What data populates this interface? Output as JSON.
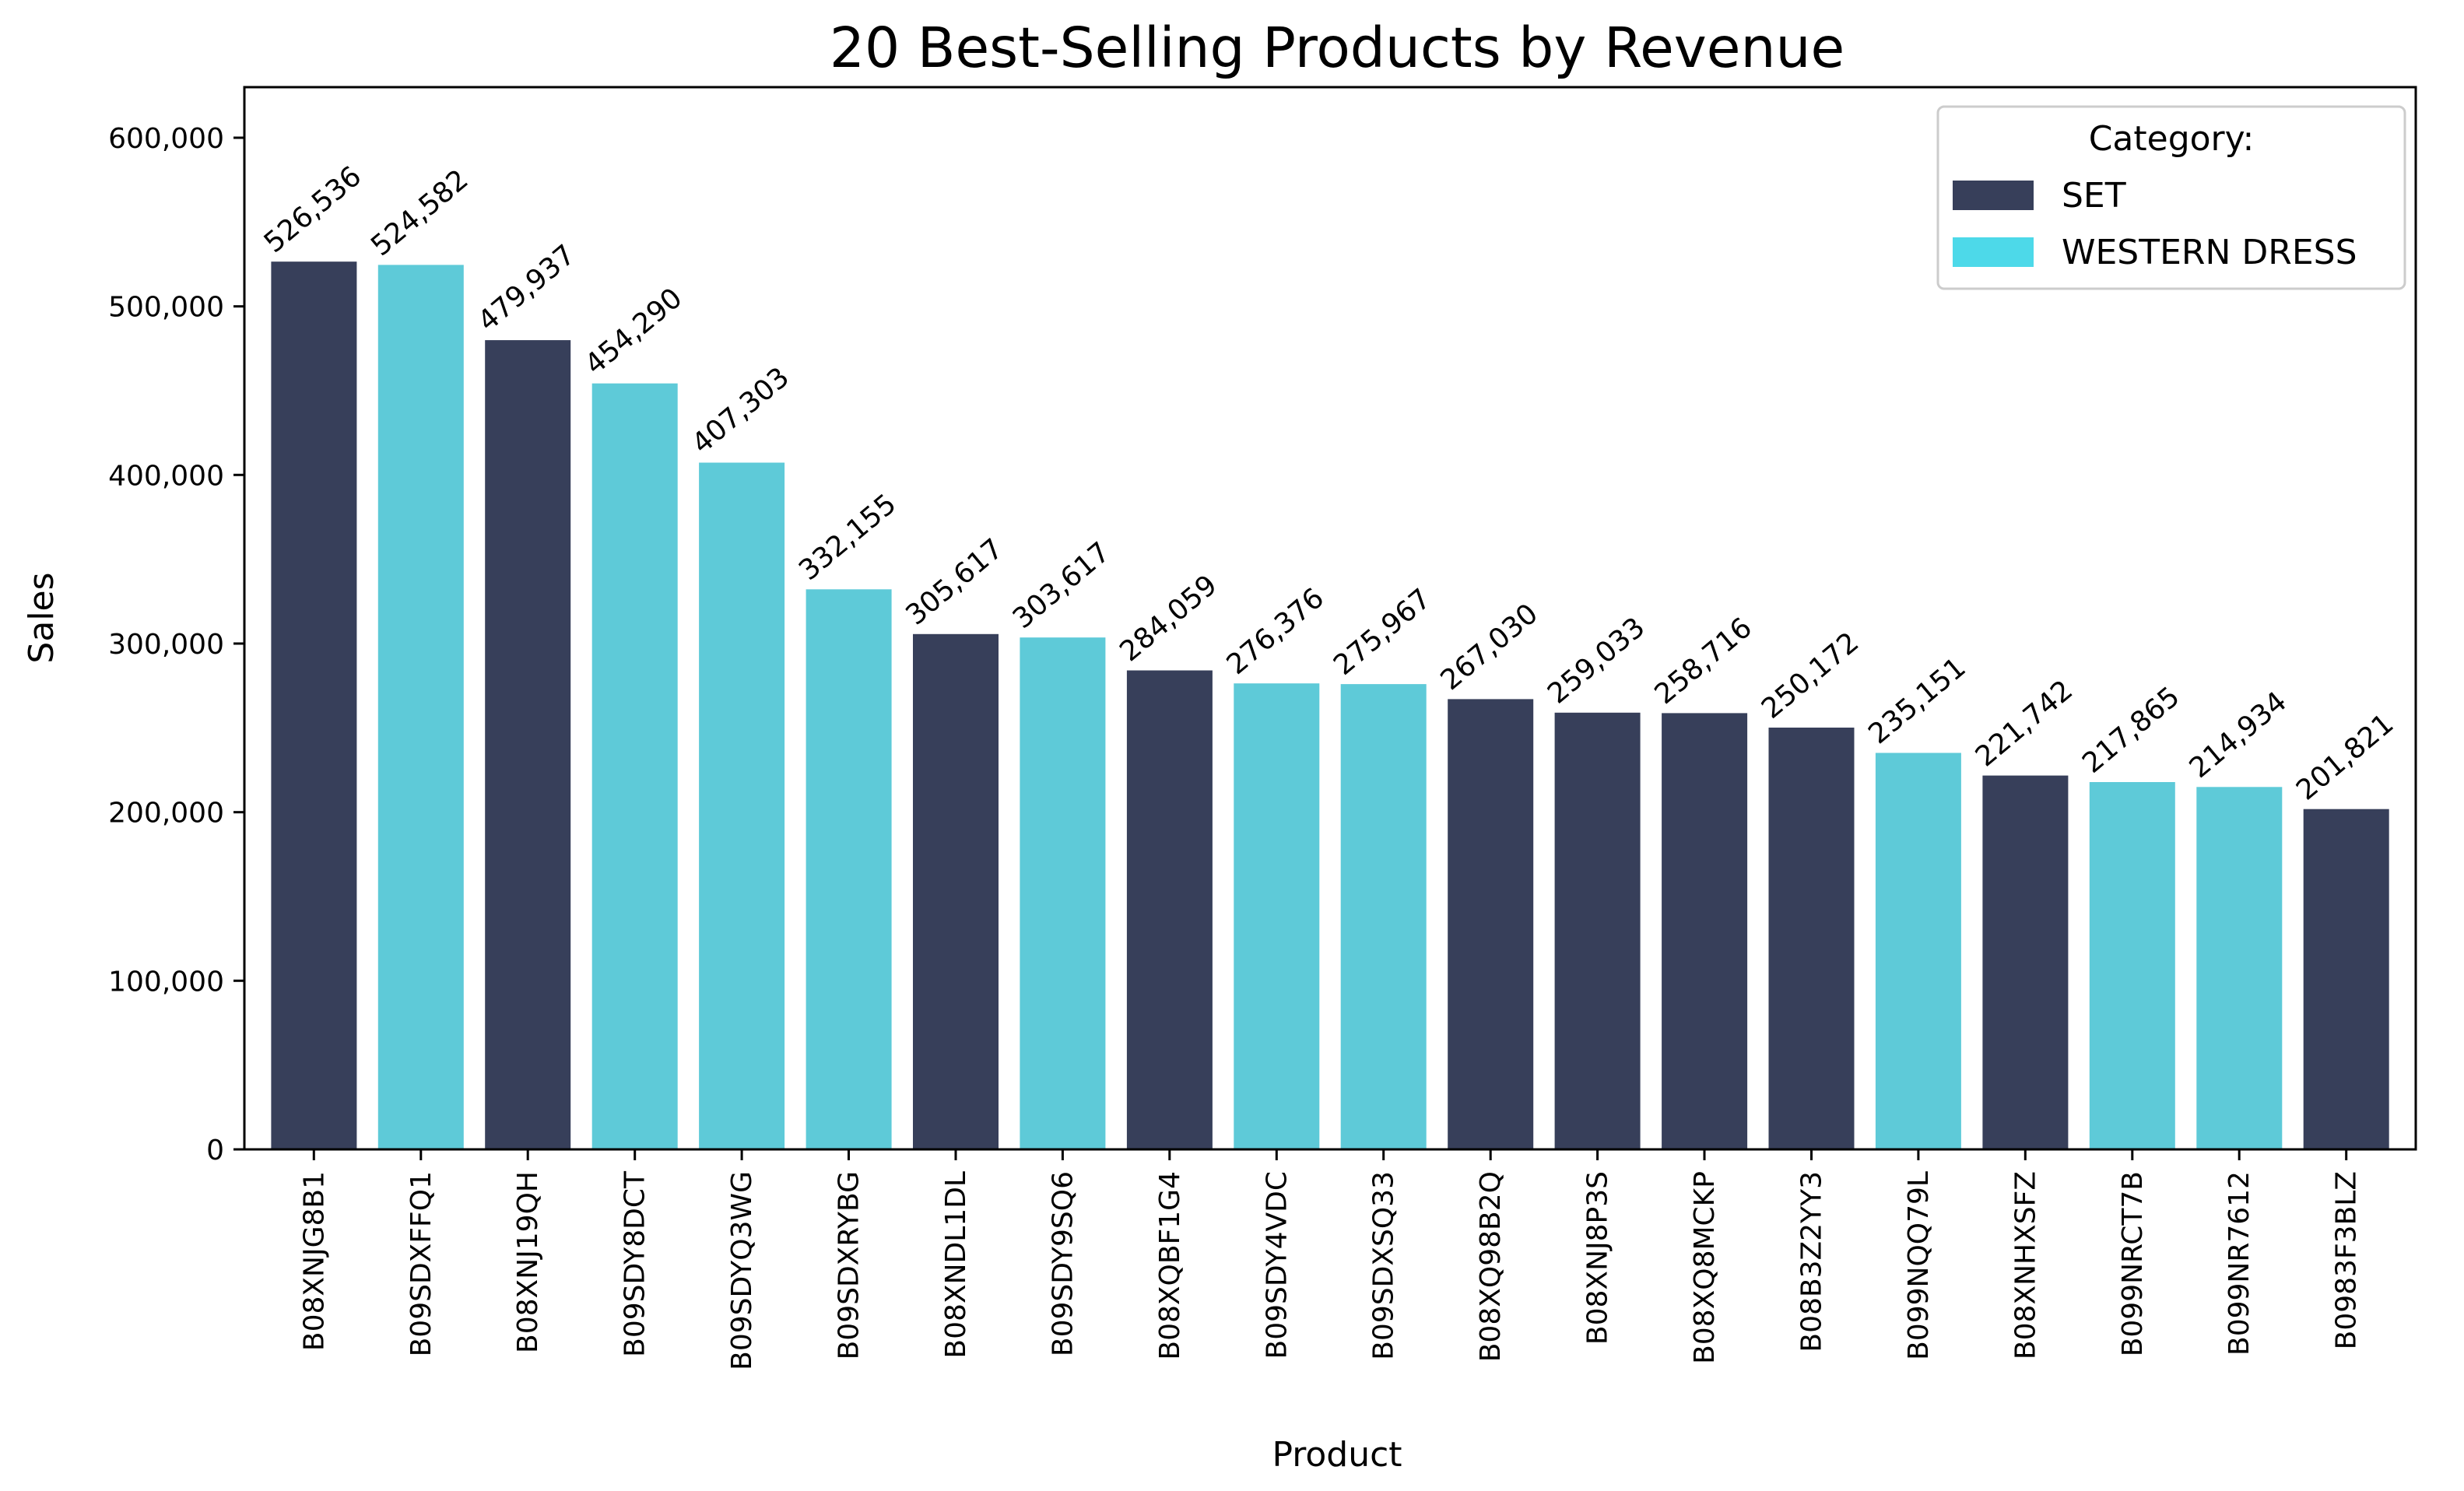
{
  "chart_data": {
    "type": "bar",
    "title": "20 Best-Selling Products by Revenue",
    "xlabel": "Product",
    "ylabel": "Sales",
    "ylim": [
      0,
      630000
    ],
    "yticks": [
      0,
      100000,
      200000,
      300000,
      400000,
      500000,
      600000
    ],
    "ytick_labels": [
      "0",
      "100,000",
      "200,000",
      "300,000",
      "400,000",
      "500,000",
      "600,000"
    ],
    "grid": false,
    "legend": {
      "title": "Category:",
      "placement": "top-right",
      "entries": [
        {
          "name": "SET",
          "color": "#373f5a"
        },
        {
          "name": "WESTERN DRESS",
          "color": "#4dd9e9"
        }
      ]
    },
    "series_colors": {
      "SET": "#373f5a",
      "WESTERN DRESS": "#5ecad8"
    },
    "categories": [
      "B08XNJG8B1",
      "B09SDXFFQ1",
      "B08XNJ19QH",
      "B09SDY8DCT",
      "B09SDYQ3WG",
      "B09SDXRYBG",
      "B08XNDL1DL",
      "B09SDY9SQ6",
      "B08XQBF1G4",
      "B09SDY4VDC",
      "B09SDXSQ33",
      "B08XQ98B2Q",
      "B08XNJ8P3S",
      "B08XQ8MCKP",
      "B08B3Z2YY3",
      "B099NQQ79L",
      "B08XNHXSFZ",
      "B099NRCT7B",
      "B099NR7612",
      "B0983F3BLZ"
    ],
    "values": [
      526536,
      524582,
      479937,
      454290,
      407303,
      332155,
      305617,
      303617,
      284059,
      276376,
      275967,
      267030,
      259033,
      258716,
      250172,
      235151,
      221742,
      217865,
      214934,
      201821
    ],
    "value_labels": [
      "526,536",
      "524,582",
      "479,937",
      "454,290",
      "407,303",
      "332,155",
      "305,617",
      "303,617",
      "284,059",
      "276,376",
      "275,967",
      "267,030",
      "259,033",
      "258,716",
      "250,172",
      "235,151",
      "221,742",
      "217,865",
      "214,934",
      "201,821"
    ],
    "bar_categories": [
      "SET",
      "WESTERN DRESS",
      "SET",
      "WESTERN DRESS",
      "WESTERN DRESS",
      "WESTERN DRESS",
      "SET",
      "WESTERN DRESS",
      "SET",
      "WESTERN DRESS",
      "WESTERN DRESS",
      "SET",
      "SET",
      "SET",
      "SET",
      "WESTERN DRESS",
      "SET",
      "WESTERN DRESS",
      "WESTERN DRESS",
      "SET"
    ]
  }
}
